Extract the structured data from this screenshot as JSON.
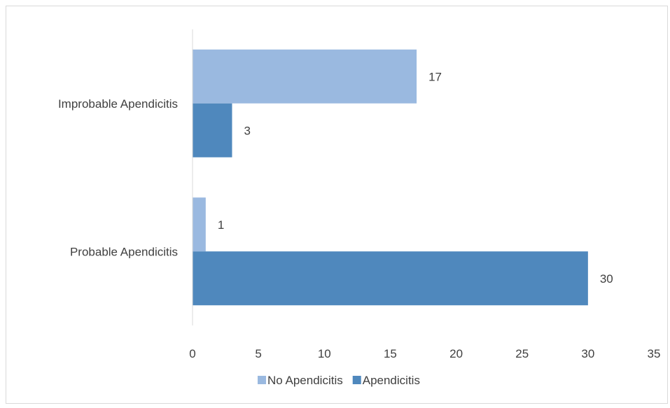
{
  "chart_data": {
    "type": "bar",
    "orientation": "horizontal",
    "categories": [
      "Improbable Apendicitis",
      "Probable Apendicitis"
    ],
    "series": [
      {
        "name": "No Apendicitis",
        "values": [
          17,
          1
        ],
        "color": "#9ab9e0"
      },
      {
        "name": "Apendicitis",
        "values": [
          3,
          30
        ],
        "color": "#4f88bd"
      }
    ],
    "xlim": [
      0,
      35
    ],
    "xticks": [
      "0",
      "5",
      "10",
      "15",
      "20",
      "25",
      "30",
      "35"
    ],
    "data_labels": [
      [
        "17",
        "1"
      ],
      [
        "3",
        "30"
      ]
    ],
    "grid": false,
    "legend_position": "bottom"
  }
}
